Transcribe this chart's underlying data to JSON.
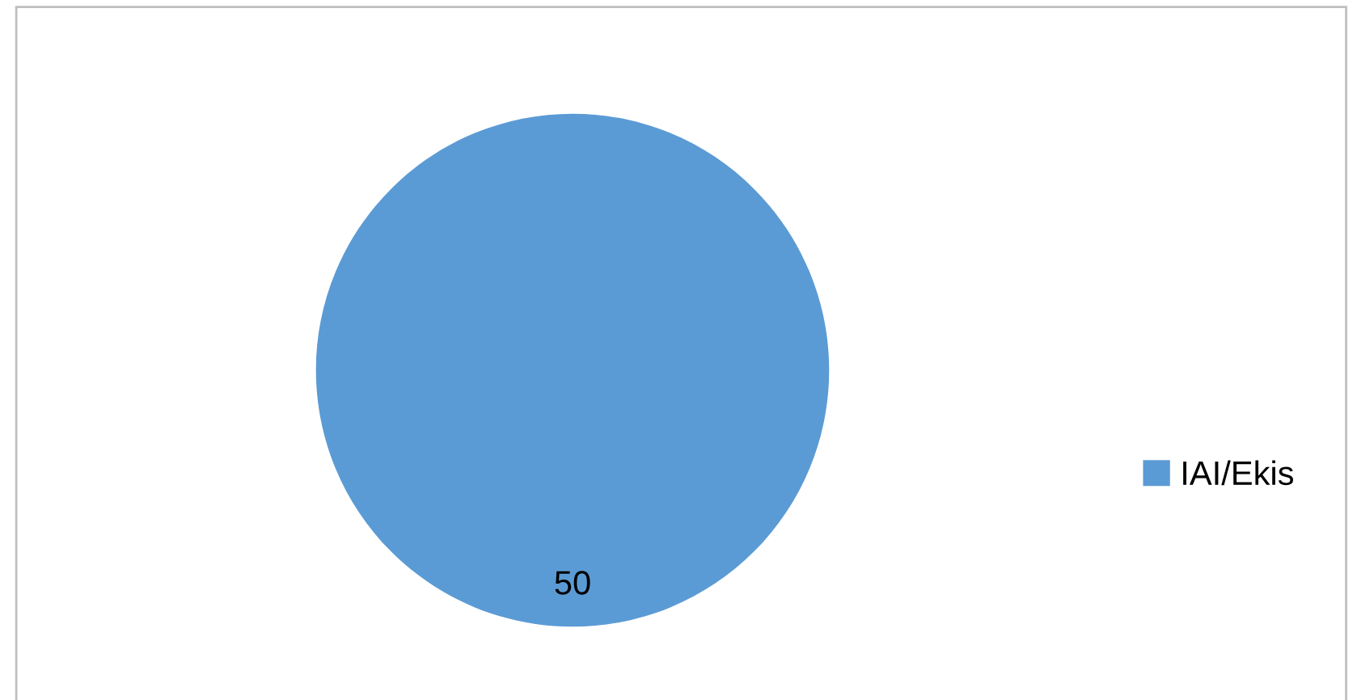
{
  "chart_data": {
    "type": "pie",
    "categories": [
      "IAI/Ekis"
    ],
    "values": [
      50
    ],
    "colors": [
      "#5b9bd5"
    ],
    "data_labels": true,
    "legend": "right"
  }
}
